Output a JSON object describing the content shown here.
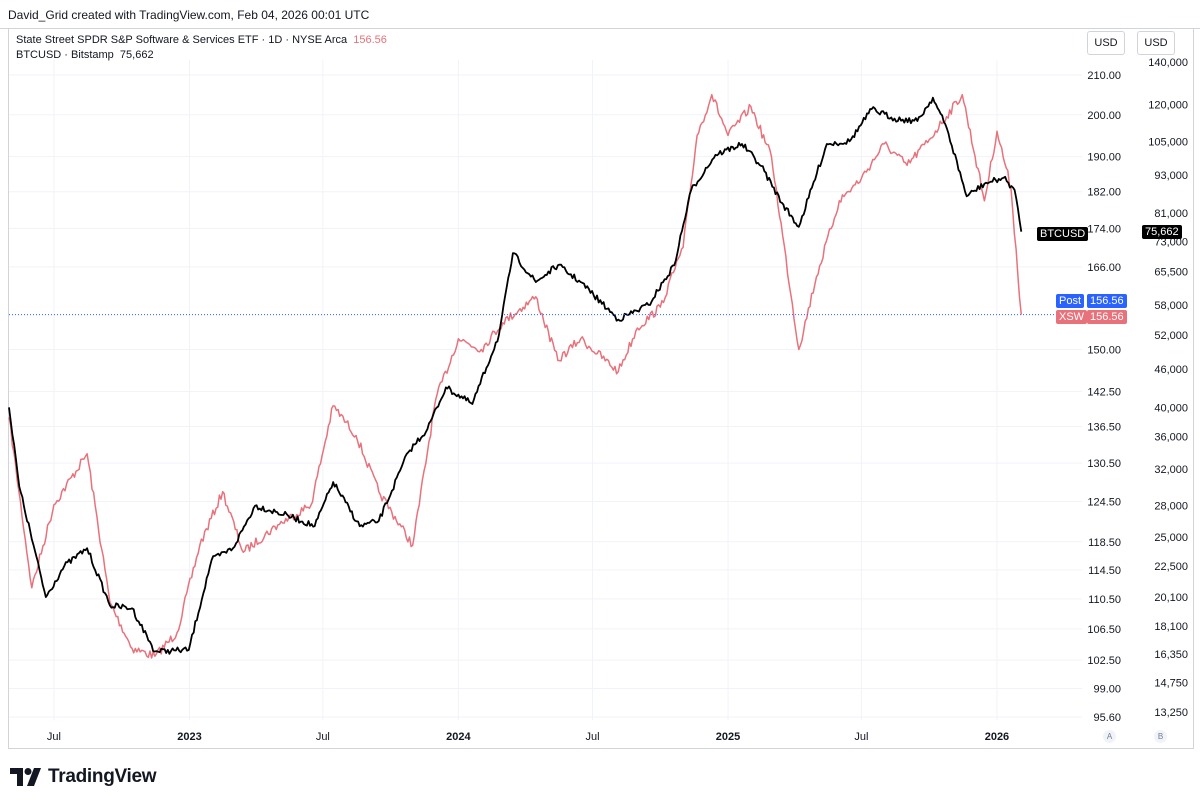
{
  "header": {
    "attribution": "David_Grid created with TradingView.com, Feb 04, 2026 00:01 UTC"
  },
  "legend": {
    "xsw_label": "State Street SPDR S&P Software & Services ETF · 1D · NYSE Arca",
    "xsw_value": "156.56",
    "btc_label": "BTCUSD · Bitstamp",
    "btc_value": "75,662"
  },
  "currency": {
    "left": "USD",
    "right": "USD"
  },
  "tags": {
    "btc": "BTCUSD",
    "btc_value": "75,662",
    "post": "Post",
    "post_value": "156.56",
    "xsw": "XSW",
    "xsw_value": "156.56"
  },
  "scale_buttons": {
    "auto": "A",
    "log": "B"
  },
  "brand": {
    "name": "TradingView"
  },
  "colors": {
    "xsw": "#e8727b",
    "btc": "#000000",
    "post": "#2962ff"
  },
  "chart_data": {
    "type": "line",
    "title": "State Street SPDR S&P Software & Services ETF · 1D · NYSE Arca vs BTCUSD · Bitstamp",
    "x_ticks": [
      "Jul",
      "2023",
      "Jul",
      "2024",
      "Jul",
      "2025",
      "Jul",
      "2026"
    ],
    "left_axis_ticks": [
      "210.00",
      "200.00",
      "190.00",
      "182.00",
      "174.00",
      "166.00",
      "150.00",
      "142.50",
      "136.50",
      "130.50",
      "124.50",
      "118.50",
      "114.50",
      "110.50",
      "106.50",
      "102.50",
      "99.00",
      "95.60"
    ],
    "right_axis_ticks": [
      "140,000",
      "120,000",
      "105,000",
      "93,000",
      "81,000",
      "73,000",
      "65,500",
      "58,000",
      "52,000",
      "46,000",
      "40,000",
      "36,000",
      "32,000",
      "28,000",
      "25,000",
      "22,500",
      "20,100",
      "18,100",
      "16,350",
      "14,750",
      "13,250"
    ],
    "y_scale": "log",
    "x_range": [
      "2022-05",
      "2026-02"
    ],
    "series": [
      {
        "name": "XSW",
        "axis": "left",
        "last": 156.56,
        "x": [
          "2022-05-01",
          "2022-06-01",
          "2022-07-01",
          "2022-08-15",
          "2022-09-15",
          "2022-10-15",
          "2022-11-15",
          "2022-12-15",
          "2023-01-15",
          "2023-02-15",
          "2023-03-15",
          "2023-05-01",
          "2023-06-15",
          "2023-07-15",
          "2023-08-15",
          "2023-09-15",
          "2023-10-31",
          "2023-12-01",
          "2024-01-01",
          "2024-02-01",
          "2024-03-01",
          "2024-04-15",
          "2024-05-15",
          "2024-06-15",
          "2024-08-05",
          "2024-08-31",
          "2024-10-01",
          "2024-11-01",
          "2024-11-20",
          "2024-12-10",
          "2025-01-01",
          "2025-02-01",
          "2025-03-01",
          "2025-04-07",
          "2025-05-01",
          "2025-06-01",
          "2025-07-01",
          "2025-08-01",
          "2025-09-01",
          "2025-10-01",
          "2025-11-15",
          "2025-12-15",
          "2026-01-01",
          "2026-01-20",
          "2026-02-03"
        ],
        "values": [
          138,
          112,
          124,
          132,
          110,
          104,
          103,
          106,
          118,
          126,
          117,
          121,
          124,
          140,
          135,
          126,
          118,
          141,
          152,
          150,
          155,
          160,
          148,
          152,
          146,
          154,
          158,
          170,
          195,
          205,
          195,
          202,
          190,
          150,
          164,
          180,
          185,
          193,
          188,
          194,
          205,
          180,
          196,
          183,
          156.56
        ]
      },
      {
        "name": "BTCUSD",
        "axis": "right",
        "last": 75662,
        "x": [
          "2022-05-01",
          "2022-05-15",
          "2022-06-20",
          "2022-07-15",
          "2022-08-15",
          "2022-09-15",
          "2022-10-15",
          "2022-11-15",
          "2022-12-31",
          "2023-01-31",
          "2023-03-01",
          "2023-03-31",
          "2023-05-15",
          "2023-06-20",
          "2023-07-15",
          "2023-08-20",
          "2023-09-15",
          "2023-10-25",
          "2023-11-20",
          "2023-12-15",
          "2024-01-20",
          "2024-02-25",
          "2024-03-15",
          "2024-04-15",
          "2024-05-15",
          "2024-06-15",
          "2024-08-05",
          "2024-09-15",
          "2024-10-20",
          "2024-11-12",
          "2024-12-15",
          "2025-01-20",
          "2025-02-15",
          "2025-03-15",
          "2025-04-07",
          "2025-05-15",
          "2025-06-15",
          "2025-07-15",
          "2025-08-15",
          "2025-09-15",
          "2025-10-06",
          "2025-10-25",
          "2025-11-21",
          "2025-12-15",
          "2026-01-10",
          "2026-01-25",
          "2026-02-03"
        ],
        "values": [
          40000,
          30000,
          20100,
          22500,
          24000,
          19500,
          19300,
          16500,
          16600,
          23000,
          24000,
          28000,
          27000,
          26000,
          30500,
          26000,
          26500,
          34000,
          37000,
          43000,
          40500,
          52000,
          70000,
          63000,
          67000,
          63000,
          55000,
          58000,
          67000,
          88000,
          100000,
          104000,
          96000,
          84000,
          77000,
          104000,
          105000,
          118000,
          114000,
          113000,
          123000,
          110000,
          86000,
          90000,
          92000,
          88000,
          75662
        ]
      }
    ]
  }
}
